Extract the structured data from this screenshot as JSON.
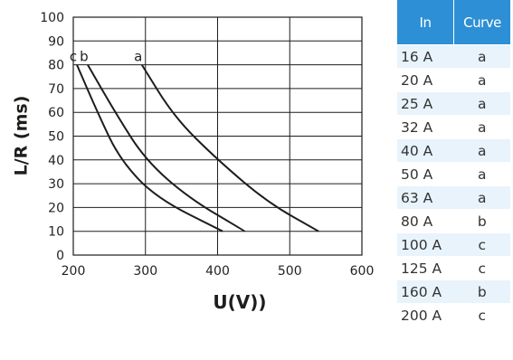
{
  "chart_data": {
    "type": "line",
    "xlabel": "U(V))",
    "ylabel": "L/R (ms)",
    "xlim": [
      200,
      600
    ],
    "ylim": [
      0,
      100
    ],
    "x_ticks": [
      "200",
      "300",
      "400",
      "500",
      "600"
    ],
    "y_ticks": [
      "0",
      "10",
      "20",
      "30",
      "40",
      "50",
      "60",
      "70",
      "80",
      "90",
      "100"
    ],
    "grid": true,
    "series": [
      {
        "name": "a",
        "points": [
          [
            295,
            80
          ],
          [
            340,
            58
          ],
          [
            400,
            40
          ],
          [
            470,
            22
          ],
          [
            540,
            10
          ]
        ]
      },
      {
        "name": "b",
        "points": [
          [
            220,
            80
          ],
          [
            260,
            59
          ],
          [
            300,
            40
          ],
          [
            360,
            24
          ],
          [
            438,
            10
          ]
        ]
      },
      {
        "name": "c",
        "points": [
          [
            205,
            80
          ],
          [
            235,
            59
          ],
          [
            265,
            40
          ],
          [
            315,
            24
          ],
          [
            407,
            10
          ]
        ]
      }
    ]
  },
  "table": {
    "headers": [
      "In",
      "Curve"
    ],
    "rows": [
      [
        "16 A",
        "a"
      ],
      [
        "20 A",
        "a"
      ],
      [
        "25 A",
        "a"
      ],
      [
        "32 A",
        "a"
      ],
      [
        "40 A",
        "a"
      ],
      [
        "50 A",
        "a"
      ],
      [
        "63 A",
        "a"
      ],
      [
        "80 A",
        "b"
      ],
      [
        "100 A",
        "c"
      ],
      [
        "125 A",
        "c"
      ],
      [
        "160 A",
        "b"
      ],
      [
        "200 A",
        "c"
      ]
    ]
  },
  "colors": {
    "header_bg": "#2d8fd5",
    "header_text": "#ffffff",
    "row_alt_bg": "#e8f3fc",
    "line": "#1d1d1b"
  }
}
